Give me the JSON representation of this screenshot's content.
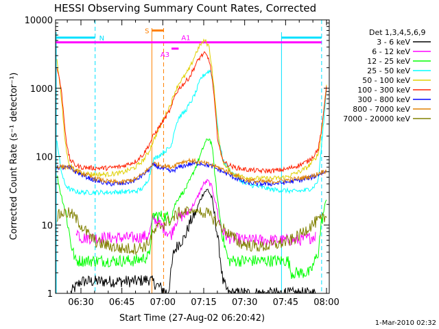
{
  "chart_data": {
    "type": "line",
    "title": "HESSI Observing Summary Count Rates, Corrected",
    "xlabel": "Start Time (27-Aug-02 06:20:42)",
    "ylabel": "Corrected Count Rate (s⁻¹ detector⁻¹)",
    "yscale": "log",
    "xlim_minutes": [
      20.7,
      121.0
    ],
    "ylim": [
      1,
      10000
    ],
    "x_ticks": [
      {
        "minute": 30,
        "label": "06:30"
      },
      {
        "minute": 45,
        "label": "06:45"
      },
      {
        "minute": 60,
        "label": "07:00"
      },
      {
        "minute": 75,
        "label": "07:15"
      },
      {
        "minute": 90,
        "label": "07:30"
      },
      {
        "minute": 105,
        "label": "07:45"
      },
      {
        "minute": 120,
        "label": "08:00"
      }
    ],
    "y_ticks": [
      {
        "value": 1,
        "label": "1"
      },
      {
        "value": 10,
        "label": "10"
      },
      {
        "value": 100,
        "label": "100"
      },
      {
        "value": 1000,
        "label": "1000"
      },
      {
        "value": 10000,
        "label": "10000"
      }
    ],
    "legend": {
      "placement": "right",
      "header": "Det 1,3,4,5,6,9",
      "entries": [
        {
          "label": "3 - 6 keV",
          "color": "#000000"
        },
        {
          "label": "6 - 12 keV",
          "color": "#ff00ff"
        },
        {
          "label": "12 - 25 keV",
          "color": "#00ff00"
        },
        {
          "label": "25 - 50 keV",
          "color": "#00ffff"
        },
        {
          "label": "50 - 100 keV",
          "color": "#e0d000"
        },
        {
          "label": "100 - 300 keV",
          "color": "#ff2000"
        },
        {
          "label": "300 - 800 keV",
          "color": "#0000ff"
        },
        {
          "label": "800 - 7000 keV",
          "color": "#e08000"
        },
        {
          "label": "7000 - 20000 keV",
          "color": "#808000"
        }
      ]
    },
    "markers": {
      "night_bars": [
        {
          "label": "N",
          "start": 20.7,
          "end": 35.2,
          "y": 5500,
          "color": "#00e0ff"
        },
        {
          "label": "",
          "start": 103.5,
          "end": 118.2,
          "y": 5500,
          "color": "#00e0ff"
        }
      ],
      "night_lines": [
        {
          "minute": 35.2,
          "color": "#00e0ff"
        },
        {
          "minute": 118.2,
          "color": "#00e0ff"
        }
      ],
      "saa_bar": {
        "label": "S",
        "start": 56.0,
        "end": 60.3,
        "y": 7000,
        "color": "#ff8000"
      },
      "saa_lines": [
        {
          "minute": 56.0,
          "color": "#ff8000",
          "dashed": false
        },
        {
          "minute": 60.3,
          "color": "#ff8000",
          "dashed": true
        }
      ],
      "attenuator_bar": {
        "label": "A1",
        "start": 20.7,
        "end": 118.2,
        "y": 4700,
        "color": "#ff00ff"
      },
      "attenuator_segment": {
        "label": "A3",
        "start": 63.2,
        "end": 65.8,
        "y": 3800,
        "color": "#ff00ff"
      }
    },
    "series": [
      {
        "name": "3 - 6 keV",
        "color": "#000000",
        "x": [
          26.0,
          30.0,
          40.0,
          50.0,
          55.0,
          57.0,
          62.0,
          64.0,
          66.0,
          68.0,
          70.0,
          72.0,
          73.5,
          75.0,
          76.5,
          78.0,
          79.5,
          81.0,
          82.0,
          84.0,
          90.0,
          100.0,
          110.0,
          116.0
        ],
        "y": [
          1.0,
          1.5,
          1.5,
          1.5,
          1.6,
          1.4,
          1.0,
          4.0,
          5.5,
          6.5,
          11.0,
          15.0,
          22.0,
          30.0,
          33.0,
          25.0,
          10.0,
          3.5,
          1.5,
          1.0,
          1.0,
          1.0,
          1.0,
          1.0
        ]
      },
      {
        "name": "6 - 12 keV",
        "color": "#ff00ff",
        "x": [
          28.0,
          30.0,
          40.0,
          50.0,
          55.0,
          56.5,
          63.0,
          64.5,
          66.0,
          68.0,
          70.0,
          72.0,
          73.5,
          75.0,
          76.5,
          78.0,
          79.5,
          81.0,
          82.5,
          84.0,
          90.0,
          100.0,
          110.0,
          114.0,
          116.0
        ],
        "y": [
          9.0,
          6.5,
          6.5,
          6.5,
          7.0,
          13.0,
          7.0,
          11.0,
          13.0,
          14.0,
          17.0,
          22.0,
          30.0,
          40.0,
          44.0,
          36.0,
          20.0,
          10.0,
          7.5,
          6.5,
          6.0,
          6.0,
          6.0,
          6.5,
          7.0
        ]
      },
      {
        "name": "12 - 25 keV",
        "color": "#00ff00",
        "x": [
          21.0,
          22.5,
          24.5,
          26.5,
          28.0,
          30.0,
          40.0,
          50.0,
          55.0,
          56.5,
          63.0,
          64.5,
          66.0,
          68.0,
          70.0,
          72.0,
          74.0,
          75.5,
          77.0,
          78.0,
          79.0,
          80.0,
          82.0,
          84.0,
          90.0,
          100.0,
          106.0,
          107.0,
          110.0,
          114.0,
          117.0,
          118.0,
          120.0
        ],
        "y": [
          60.0,
          30.0,
          15.0,
          5.0,
          3.0,
          3.0,
          3.0,
          3.0,
          3.5,
          14.0,
          13.0,
          20.0,
          26.0,
          32.0,
          45.0,
          70.0,
          110.0,
          160.0,
          185.0,
          150.0,
          60.0,
          25.0,
          6.5,
          3.0,
          3.0,
          3.0,
          3.0,
          2.0,
          2.0,
          2.0,
          4.0,
          10.0,
          25.0
        ]
      },
      {
        "name": "25 - 50 keV",
        "color": "#00ffff",
        "x": [
          21.0,
          22.5,
          24.0,
          26.0,
          28.0,
          30.0,
          40.0,
          50.0,
          53.0,
          55.0,
          56.5,
          63.0,
          64.5,
          66.0,
          68.0,
          70.0,
          72.0,
          74.0,
          76.0,
          77.5,
          78.5,
          79.5,
          80.5,
          82.0,
          85.0,
          90.0,
          100.0,
          105.0,
          108.0,
          112.0,
          115.0,
          117.0,
          118.5,
          120.0
        ],
        "y": [
          200.0,
          70.0,
          40.0,
          33.0,
          31.0,
          30.0,
          30.0,
          31.0,
          35.0,
          50.0,
          90.0,
          140.0,
          270.0,
          380.0,
          450.0,
          600.0,
          850.0,
          1400.0,
          1700.0,
          1800.0,
          1200.0,
          500.0,
          180.0,
          90.0,
          60.0,
          40.0,
          33.0,
          32.0,
          31.0,
          32.0,
          35.0,
          45.0,
          200.0,
          1000.0
        ]
      },
      {
        "name": "50 - 100 keV",
        "color": "#e0d000",
        "x": [
          21.0,
          22.0,
          23.0,
          24.0,
          25.0,
          26.0,
          28.0,
          30.0,
          35.0,
          40.0,
          45.0,
          50.0,
          53.0,
          55.0,
          56.5,
          63.0,
          64.5,
          66.0,
          68.0,
          70.0,
          72.0,
          74.0,
          75.5,
          77.0,
          78.0,
          79.0,
          80.0,
          81.5,
          83.0,
          86.0,
          90.0,
          95.0,
          100.0,
          105.0,
          110.0,
          113.0,
          115.0,
          117.0,
          118.5,
          120.0
        ],
        "y": [
          3000.0,
          1500.0,
          600.0,
          200.0,
          100.0,
          75.0,
          62.0,
          58.0,
          55.0,
          55.0,
          58.0,
          70.0,
          90.0,
          120.0,
          170.0,
          600.0,
          900.0,
          1200.0,
          1500.0,
          2000.0,
          3200.0,
          4500.0,
          5000.0,
          4000.0,
          2000.0,
          800.0,
          250.0,
          100.0,
          70.0,
          55.0,
          50.0,
          48.0,
          48.0,
          50.0,
          60.0,
          70.0,
          85.0,
          110.0,
          300.0,
          1200.0
        ]
      },
      {
        "name": "100 - 300 keV",
        "color": "#ff2000",
        "x": [
          21.0,
          22.0,
          23.0,
          24.0,
          25.0,
          26.0,
          28.0,
          30.0,
          35.0,
          40.0,
          45.0,
          50.0,
          53.0,
          55.0,
          56.5,
          63.0,
          64.5,
          66.0,
          68.0,
          70.0,
          72.0,
          74.0,
          75.5,
          77.0,
          78.0,
          79.0,
          80.0,
          81.5,
          83.0,
          86.0,
          90.0,
          95.0,
          100.0,
          105.0,
          110.0,
          113.0,
          115.0,
          117.0,
          118.5,
          120.0
        ],
        "y": [
          2000.0,
          1500.0,
          800.0,
          300.0,
          130.0,
          90.0,
          75.0,
          70.0,
          68.0,
          68.0,
          72.0,
          85.0,
          110.0,
          150.0,
          200.0,
          500.0,
          800.0,
          1000.0,
          1200.0,
          1500.0,
          2200.0,
          3000.0,
          3200.0,
          2600.0,
          1500.0,
          600.0,
          200.0,
          100.0,
          80.0,
          70.0,
          65.0,
          62.0,
          62.0,
          65.0,
          75.0,
          85.0,
          100.0,
          130.0,
          300.0,
          1100.0
        ]
      },
      {
        "name": "300 - 800 keV",
        "color": "#0000ff",
        "x": [
          21.0,
          26.0,
          28.0,
          30.0,
          35.0,
          40.0,
          45.0,
          50.0,
          53.0,
          55.0,
          56.5,
          63.0,
          66.0,
          70.0,
          74.0,
          78.0,
          82.0,
          86.0,
          90.0,
          95.0,
          100.0,
          105.0,
          110.0,
          115.0,
          117.0,
          118.5,
          120.0
        ],
        "y": [
          70.0,
          68.0,
          60.0,
          55.0,
          45.0,
          40.0,
          40.0,
          45.0,
          55.0,
          65.0,
          75.0,
          60.0,
          70.0,
          78.0,
          80.0,
          72.0,
          60.0,
          50.0,
          42.0,
          40.0,
          40.0,
          42.0,
          45.0,
          50.0,
          55.0,
          58.0,
          60.0
        ]
      },
      {
        "name": "800 - 7000 keV",
        "color": "#e08000",
        "x": [
          21.0,
          26.0,
          28.0,
          30.0,
          35.0,
          40.0,
          45.0,
          50.0,
          53.0,
          55.0,
          56.5,
          63.0,
          66.0,
          70.0,
          74.0,
          78.0,
          82.0,
          86.0,
          90.0,
          95.0,
          100.0,
          105.0,
          110.0,
          115.0,
          117.0,
          118.5,
          120.0
        ],
        "y": [
          72.0,
          70.0,
          62.0,
          58.0,
          48.0,
          43.0,
          42.0,
          47.0,
          57.0,
          68.0,
          80.0,
          70.0,
          82.0,
          88.0,
          82.0,
          75.0,
          65.0,
          55.0,
          46.0,
          43.0,
          43.0,
          45.0,
          48.0,
          52.0,
          57.0,
          60.0,
          62.0
        ]
      },
      {
        "name": "7000 - 20000 keV",
        "color": "#808000",
        "x": [
          21.0,
          23.0,
          25.0,
          27.0,
          30.0,
          33.0,
          36.0,
          40.0,
          45.0,
          50.0,
          54.0,
          56.0,
          58.0,
          63.0,
          66.0,
          70.0,
          73.0,
          76.0,
          79.0,
          82.0,
          85.0,
          88.0,
          92.0,
          96.0,
          100.0,
          104.0,
          107.0,
          110.0,
          113.0,
          116.0,
          118.0,
          120.0
        ],
        "y": [
          13.0,
          15.0,
          15.0,
          14.0,
          10.0,
          7.0,
          5.5,
          5.0,
          4.5,
          4.5,
          5.0,
          7.0,
          9.0,
          12.0,
          15.0,
          16.0,
          16.0,
          15.0,
          12.0,
          9.0,
          7.0,
          5.5,
          5.0,
          4.8,
          5.0,
          5.5,
          6.0,
          7.0,
          9.0,
          11.0,
          12.0,
          13.0
        ]
      }
    ],
    "footer_date": "1-Mar-2010 02:32"
  }
}
